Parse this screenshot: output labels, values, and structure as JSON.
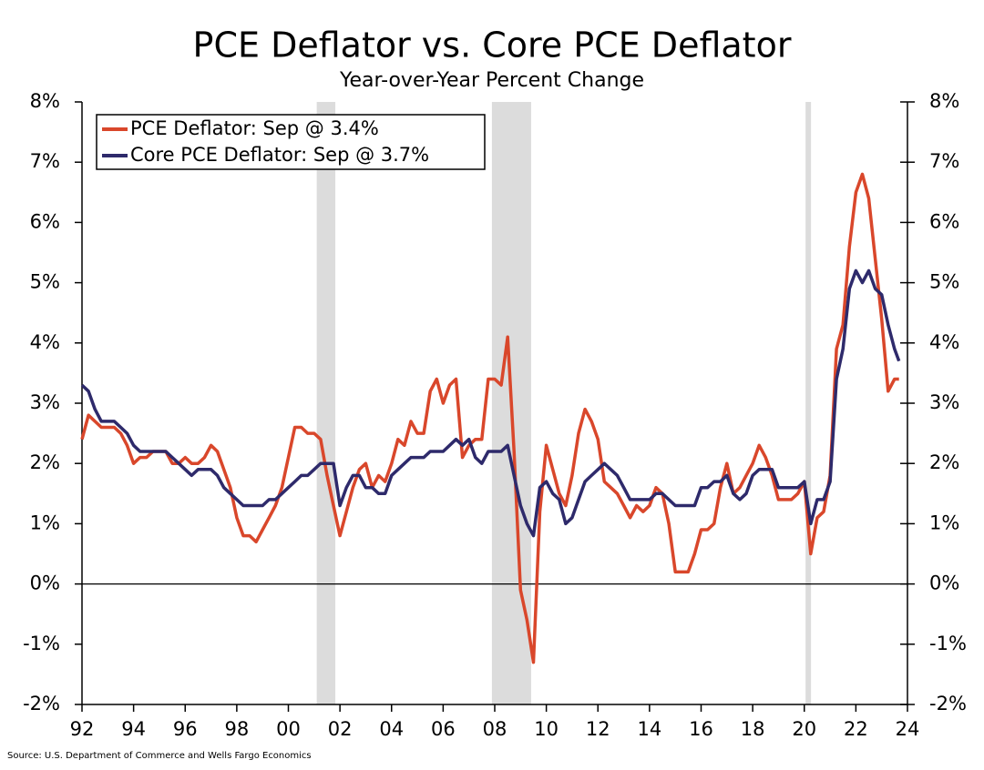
{
  "chart_data": {
    "type": "line",
    "title": "PCE Deflator vs. Core PCE Deflator",
    "subtitle": "Year-over-Year Percent Change",
    "source": "Source: U.S. Department of Commerce and Wells Fargo Economics",
    "x": [
      1992,
      1992.25,
      1992.5,
      1992.75,
      1993,
      1993.25,
      1993.5,
      1993.75,
      1994,
      1994.25,
      1994.5,
      1994.75,
      1995,
      1995.25,
      1995.5,
      1995.75,
      1996,
      1996.25,
      1996.5,
      1996.75,
      1997,
      1997.25,
      1997.5,
      1997.75,
      1998,
      1998.25,
      1998.5,
      1998.75,
      1999,
      1999.25,
      1999.5,
      1999.75,
      2000,
      2000.25,
      2000.5,
      2000.75,
      2001,
      2001.25,
      2001.5,
      2001.75,
      2002,
      2002.25,
      2002.5,
      2002.75,
      2003,
      2003.25,
      2003.5,
      2003.75,
      2004,
      2004.25,
      2004.5,
      2004.75,
      2005,
      2005.25,
      2005.5,
      2005.75,
      2006,
      2006.25,
      2006.5,
      2006.75,
      2007,
      2007.25,
      2007.5,
      2007.75,
      2008,
      2008.25,
      2008.5,
      2008.75,
      2009,
      2009.25,
      2009.5,
      2009.75,
      2010,
      2010.25,
      2010.5,
      2010.75,
      2011,
      2011.25,
      2011.5,
      2011.75,
      2012,
      2012.25,
      2012.5,
      2012.75,
      2013,
      2013.25,
      2013.5,
      2013.75,
      2014,
      2014.25,
      2014.5,
      2014.75,
      2015,
      2015.25,
      2015.5,
      2015.75,
      2016,
      2016.25,
      2016.5,
      2016.75,
      2017,
      2017.25,
      2017.5,
      2017.75,
      2018,
      2018.25,
      2018.5,
      2018.75,
      2019,
      2019.25,
      2019.5,
      2019.75,
      2020,
      2020.25,
      2020.5,
      2020.75,
      2021,
      2021.25,
      2021.5,
      2021.75,
      2022,
      2022.25,
      2022.5,
      2022.75,
      2023,
      2023.25,
      2023.5,
      2023.67
    ],
    "series": [
      {
        "name": "PCE Deflator: Sep @ 3.4%",
        "color": "#d9472b",
        "values": [
          2.4,
          2.8,
          2.7,
          2.6,
          2.6,
          2.6,
          2.5,
          2.3,
          2.0,
          2.1,
          2.1,
          2.2,
          2.2,
          2.2,
          2.0,
          2.0,
          2.1,
          2.0,
          2.0,
          2.1,
          2.3,
          2.2,
          1.9,
          1.6,
          1.1,
          0.8,
          0.8,
          0.7,
          0.9,
          1.1,
          1.3,
          1.6,
          2.1,
          2.6,
          2.6,
          2.5,
          2.5,
          2.4,
          1.8,
          1.3,
          0.8,
          1.2,
          1.6,
          1.9,
          2.0,
          1.6,
          1.8,
          1.7,
          2.0,
          2.4,
          2.3,
          2.7,
          2.5,
          2.5,
          3.2,
          3.4,
          3.0,
          3.3,
          3.4,
          2.1,
          2.3,
          2.4,
          2.4,
          3.4,
          3.4,
          3.3,
          4.1,
          2.2,
          -0.1,
          -0.6,
          -1.3,
          1.2,
          2.3,
          1.9,
          1.5,
          1.3,
          1.8,
          2.5,
          2.9,
          2.7,
          2.4,
          1.7,
          1.6,
          1.5,
          1.3,
          1.1,
          1.3,
          1.2,
          1.3,
          1.6,
          1.5,
          1.0,
          0.2,
          0.2,
          0.2,
          0.5,
          0.9,
          0.9,
          1.0,
          1.6,
          2.0,
          1.5,
          1.6,
          1.8,
          2.0,
          2.3,
          2.1,
          1.8,
          1.4,
          1.4,
          1.4,
          1.5,
          1.7,
          0.5,
          1.1,
          1.2,
          1.8,
          3.9,
          4.3,
          5.6,
          6.5,
          6.8,
          6.4,
          5.4,
          4.4,
          3.2,
          3.4,
          3.4
        ]
      },
      {
        "name": "Core PCE Deflator: Sep @ 3.7%",
        "color": "#2e2a6b",
        "values": [
          3.3,
          3.2,
          2.9,
          2.7,
          2.7,
          2.7,
          2.6,
          2.5,
          2.3,
          2.2,
          2.2,
          2.2,
          2.2,
          2.2,
          2.1,
          2.0,
          1.9,
          1.8,
          1.9,
          1.9,
          1.9,
          1.8,
          1.6,
          1.5,
          1.4,
          1.3,
          1.3,
          1.3,
          1.3,
          1.4,
          1.4,
          1.5,
          1.6,
          1.7,
          1.8,
          1.8,
          1.9,
          2.0,
          2.0,
          2.0,
          1.3,
          1.6,
          1.8,
          1.8,
          1.6,
          1.6,
          1.5,
          1.5,
          1.8,
          1.9,
          2.0,
          2.1,
          2.1,
          2.1,
          2.2,
          2.2,
          2.2,
          2.3,
          2.4,
          2.3,
          2.4,
          2.1,
          2.0,
          2.2,
          2.2,
          2.2,
          2.3,
          1.8,
          1.3,
          1.0,
          0.8,
          1.6,
          1.7,
          1.5,
          1.4,
          1.0,
          1.1,
          1.4,
          1.7,
          1.8,
          1.9,
          2.0,
          1.9,
          1.8,
          1.6,
          1.4,
          1.4,
          1.4,
          1.4,
          1.5,
          1.5,
          1.4,
          1.3,
          1.3,
          1.3,
          1.3,
          1.6,
          1.6,
          1.7,
          1.7,
          1.8,
          1.5,
          1.4,
          1.5,
          1.8,
          1.9,
          1.9,
          1.9,
          1.6,
          1.6,
          1.6,
          1.6,
          1.7,
          1.0,
          1.4,
          1.4,
          1.7,
          3.4,
          3.9,
          4.9,
          5.2,
          5.0,
          5.2,
          4.9,
          4.8,
          4.3,
          3.9,
          3.7
        ]
      }
    ],
    "shaded_periods": [
      [
        2001.1,
        2001.82
      ],
      [
        2007.89,
        2009.41
      ],
      [
        2020.05,
        2020.26
      ]
    ],
    "shade_color": "#dcdcdc",
    "xlim": [
      1992,
      2024
    ],
    "xticks": [
      {
        "value": 1992,
        "label": "92"
      },
      {
        "value": 1994,
        "label": "94"
      },
      {
        "value": 1996,
        "label": "96"
      },
      {
        "value": 1998,
        "label": "98"
      },
      {
        "value": 2000,
        "label": "00"
      },
      {
        "value": 2002,
        "label": "02"
      },
      {
        "value": 2004,
        "label": "04"
      },
      {
        "value": 2006,
        "label": "06"
      },
      {
        "value": 2008,
        "label": "08"
      },
      {
        "value": 2010,
        "label": "10"
      },
      {
        "value": 2012,
        "label": "12"
      },
      {
        "value": 2014,
        "label": "14"
      },
      {
        "value": 2016,
        "label": "16"
      },
      {
        "value": 2018,
        "label": "18"
      },
      {
        "value": 2020,
        "label": "20"
      },
      {
        "value": 2022,
        "label": "22"
      },
      {
        "value": 2024,
        "label": "24"
      }
    ],
    "ylim": [
      -2,
      8
    ],
    "yticks": [
      {
        "value": -2,
        "label": "-2%"
      },
      {
        "value": -1,
        "label": "-1%"
      },
      {
        "value": 0,
        "label": "0%"
      },
      {
        "value": 1,
        "label": "1%"
      },
      {
        "value": 2,
        "label": "2%"
      },
      {
        "value": 3,
        "label": "3%"
      },
      {
        "value": 4,
        "label": "4%"
      },
      {
        "value": 5,
        "label": "5%"
      },
      {
        "value": 6,
        "label": "6%"
      },
      {
        "value": 7,
        "label": "7%"
      },
      {
        "value": 8,
        "label": "8%"
      }
    ],
    "y2lim": [
      -2,
      8
    ],
    "y2ticks": [
      {
        "value": -2,
        "label": "-2%"
      },
      {
        "value": -1,
        "label": "-1%"
      },
      {
        "value": 0,
        "label": "0%"
      },
      {
        "value": 1,
        "label": "1%"
      },
      {
        "value": 2,
        "label": "2%"
      },
      {
        "value": 3,
        "label": "3%"
      },
      {
        "value": 4,
        "label": "4%"
      },
      {
        "value": 5,
        "label": "5%"
      },
      {
        "value": 6,
        "label": "6%"
      },
      {
        "value": 7,
        "label": "7%"
      },
      {
        "value": 8,
        "label": "8%"
      }
    ]
  }
}
